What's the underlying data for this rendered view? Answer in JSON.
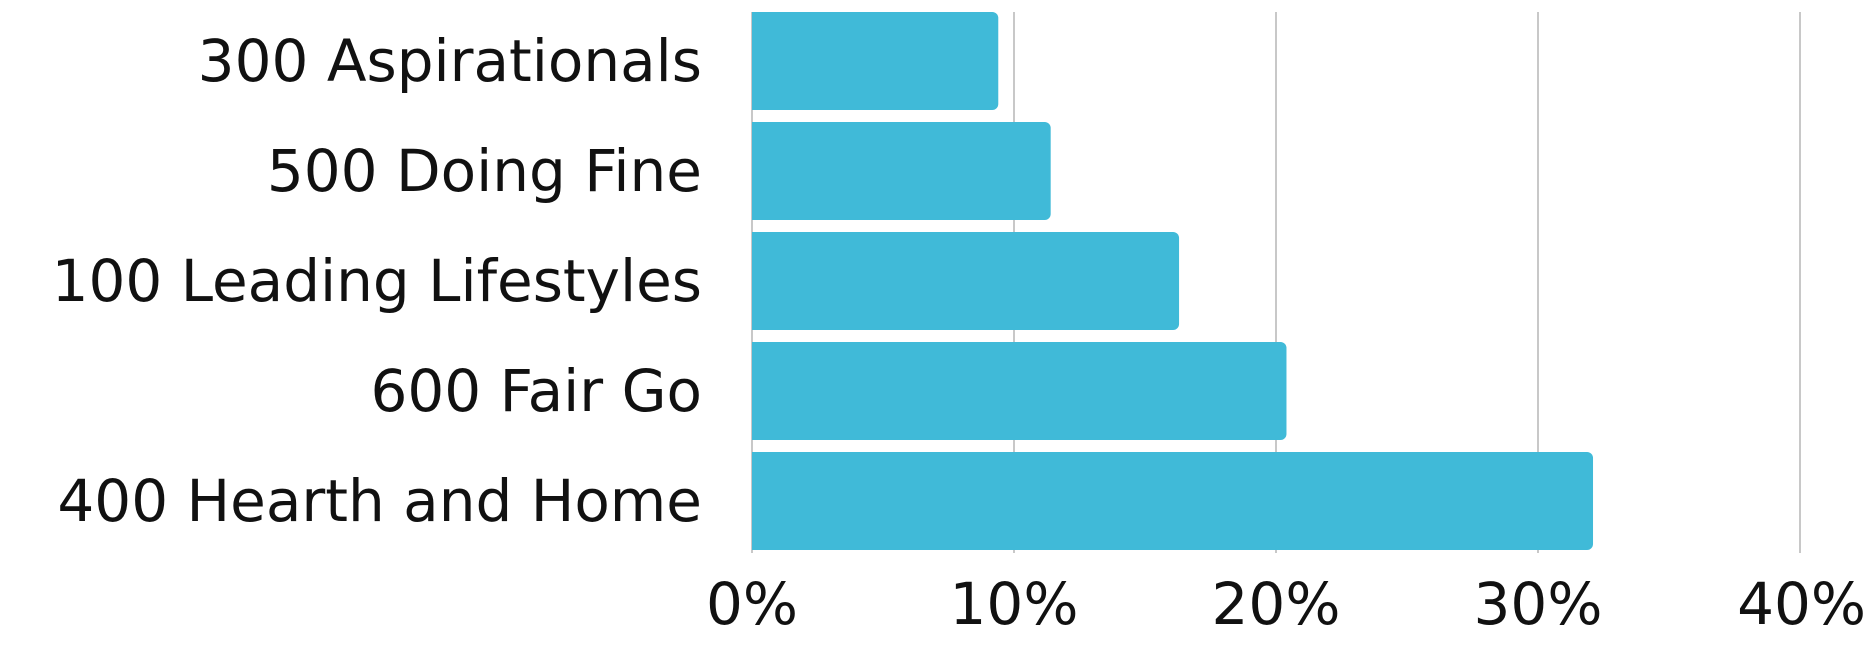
{
  "chart_data": {
    "type": "bar",
    "orientation": "horizontal",
    "title": "",
    "xlabel": "",
    "ylabel": "",
    "categories": [
      "300 Aspirationals",
      "500 Doing Fine",
      "100 Leading Lifestyles",
      "600 Fair Go",
      "400 Hearth and Home"
    ],
    "values": [
      9.4,
      11.4,
      16.3,
      20.4,
      32.1
    ],
    "value_unit": "%",
    "xlim": [
      0,
      40
    ],
    "xticks": [
      0,
      10,
      20,
      30,
      40
    ],
    "xtick_labels": [
      "0%",
      "10%",
      "20%",
      "30%",
      "40%"
    ],
    "grid": "vertical",
    "legend": "none",
    "bar_color": "#40BAD8",
    "grid_color": "#C8C8C8"
  }
}
